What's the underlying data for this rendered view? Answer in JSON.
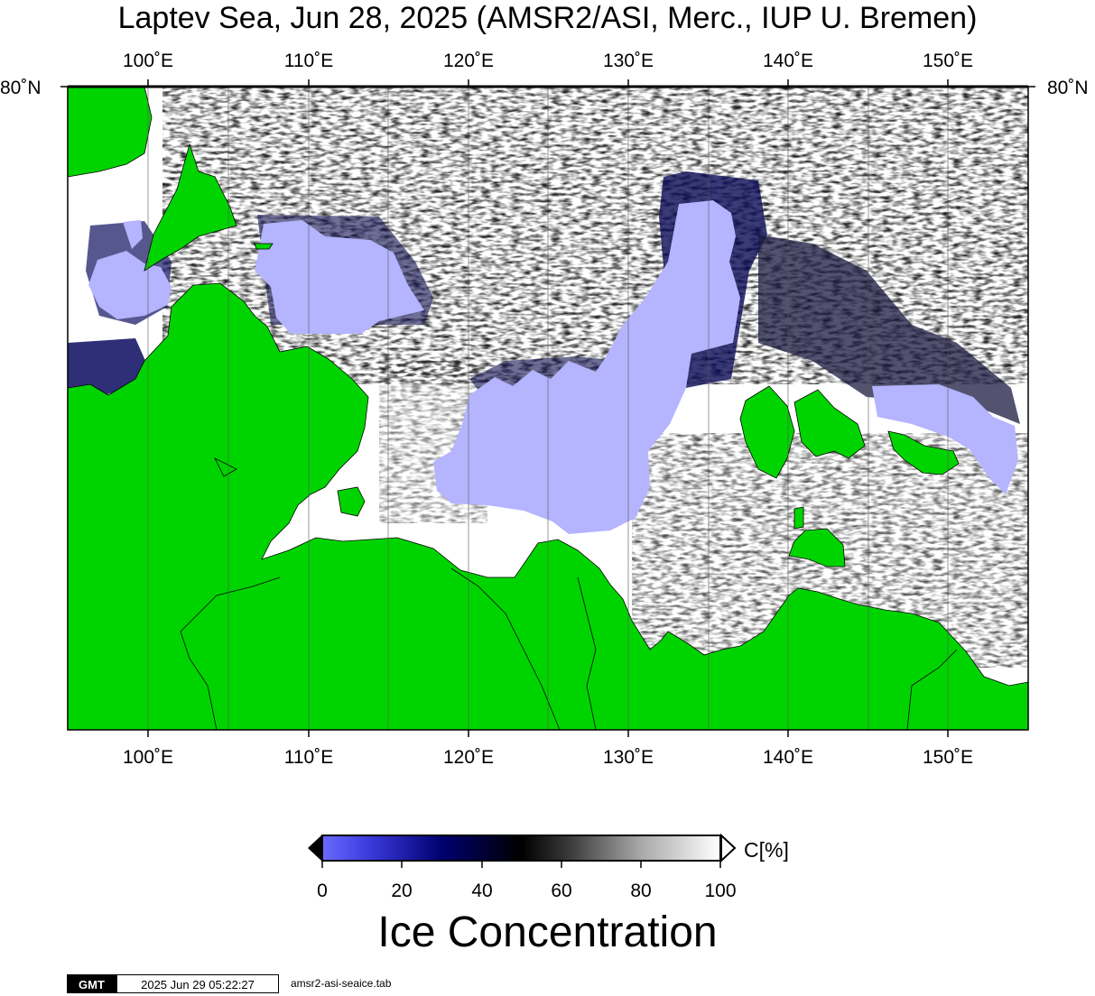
{
  "title": "Laptev Sea, Jun 28, 2025 (AMSR2/ASI, Merc., IUP U. Bremen)",
  "map": {
    "lon_ticks": [
      "100˚E",
      "110˚E",
      "120˚E",
      "130˚E",
      "140˚E",
      "150˚E"
    ],
    "lat_ticks": [
      "80˚N"
    ],
    "lon_range": [
      95,
      155
    ],
    "colors": {
      "land": "#00d400",
      "open_water": "#ffffff",
      "low_ice": "#b4b4ff",
      "frame": "#000000",
      "grid": "#555555"
    }
  },
  "colorbar": {
    "title": "Ice Concentration",
    "unit": "C[%]",
    "ticks": [
      "0",
      "20",
      "40",
      "60",
      "80",
      "100"
    ],
    "range": [
      0,
      100
    ]
  },
  "footer": {
    "logo": "GMT",
    "timestamp": "2025 Jun 29 05:22:27",
    "source": "amsr2-asi-seaice.tab"
  }
}
